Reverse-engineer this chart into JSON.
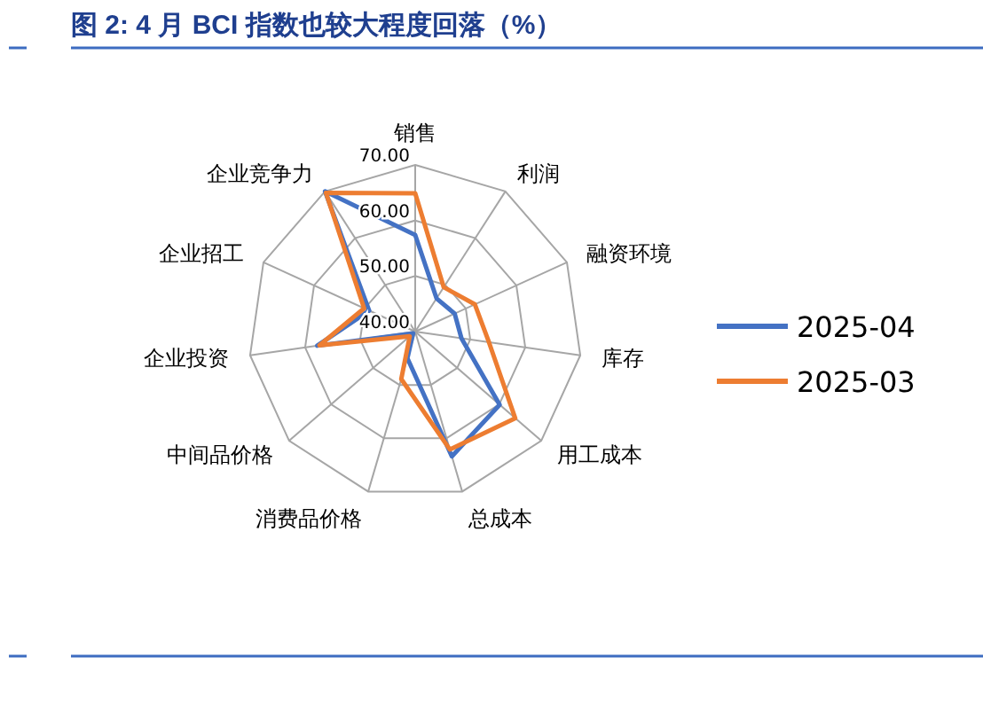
{
  "chart_data": {
    "type": "radar",
    "title": "图 2:  4 月 BCI 指数也较大程度回落（%）",
    "categories": [
      "销售",
      "利润",
      "融资环境",
      "库存",
      "用工成本",
      "总成本",
      "消费品价格",
      "中间品价格",
      "企业投资",
      "企业招工",
      "企业竞争力"
    ],
    "ylim": [
      40,
      70
    ],
    "yticks": [
      {
        "value": 40,
        "label": "40.00"
      },
      {
        "value": 50,
        "label": "50.00"
      },
      {
        "value": 60,
        "label": "60.00"
      },
      {
        "value": 70,
        "label": "70.00"
      }
    ],
    "legend": "right",
    "grid": true,
    "series": [
      {
        "name": "2025-04",
        "color": "#4472c4",
        "values": [
          57.4,
          47.1,
          47.8,
          48.4,
          60.1,
          63.4,
          45.0,
          40.5,
          57.8,
          49.1,
          70.0
        ]
      },
      {
        "name": "2025-03",
        "color": "#ed7d31",
        "values": [
          64.9,
          49.5,
          51.8,
          53.4,
          63.8,
          62.1,
          48.9,
          41.3,
          57.4,
          50.1,
          69.7
        ]
      }
    ]
  }
}
